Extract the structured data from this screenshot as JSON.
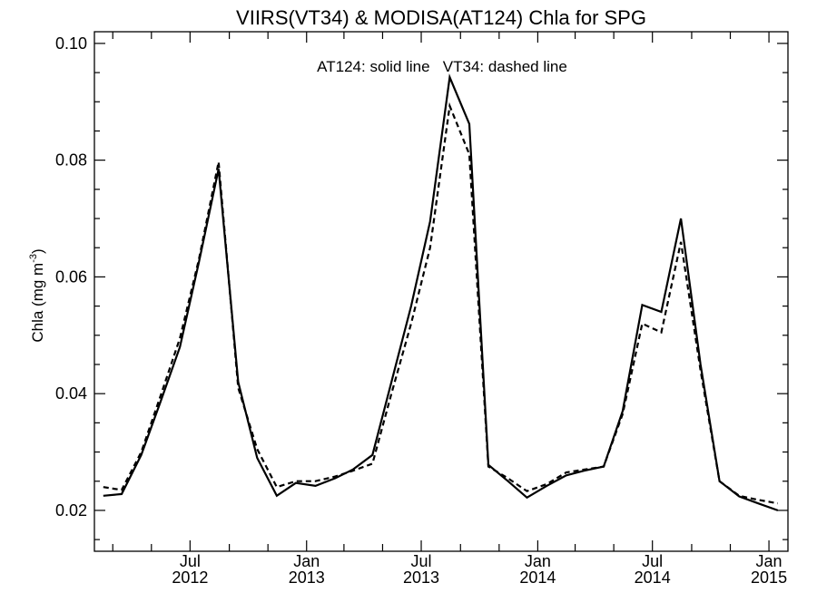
{
  "chart_data": {
    "type": "line",
    "title": "VIIRS(VT34) & MODISA(AT124)  Chla for SPG",
    "ylabel": "Chla (mg m",
    "ylabel_sup": "-3",
    "ylabel_close": ")",
    "annotation": "AT124: solid line   VT34: dashed line",
    "xlim": [
      "2012-02-01",
      "2015-01-31"
    ],
    "ylim": [
      0.013,
      0.102
    ],
    "yticks": [
      0.02,
      0.04,
      0.06,
      0.08,
      0.1
    ],
    "ytick_labels": [
      "0.02",
      "0.04",
      "0.06",
      "0.08",
      "0.10"
    ],
    "yminor_step": 0.005,
    "xtick_months": [
      "2012-03-01",
      "2012-05-01",
      "2012-07-01",
      "2012-09-01",
      "2012-11-01",
      "2013-01-01",
      "2013-03-01",
      "2013-05-01",
      "2013-07-01",
      "2013-09-01",
      "2013-11-01",
      "2014-01-01",
      "2014-03-01",
      "2014-05-01",
      "2014-07-01",
      "2014-09-01",
      "2014-11-01",
      "2015-01-01"
    ],
    "xtick_labels": [
      {
        "date": "2012-07-01",
        "month": "Jul",
        "year": "2012"
      },
      {
        "date": "2013-01-01",
        "month": "Jan",
        "year": "2013"
      },
      {
        "date": "2013-07-01",
        "month": "Jul",
        "year": "2013"
      },
      {
        "date": "2014-01-01",
        "month": "Jan",
        "year": "2014"
      },
      {
        "date": "2014-07-01",
        "month": "Jul",
        "year": "2014"
      },
      {
        "date": "2015-01-01",
        "month": "Jan",
        "year": "2015"
      }
    ],
    "x": [
      "2012-02-15",
      "2012-03-15",
      "2012-04-15",
      "2012-05-15",
      "2012-06-15",
      "2012-07-15",
      "2012-08-15",
      "2012-09-15",
      "2012-10-15",
      "2012-11-15",
      "2012-12-15",
      "2013-01-15",
      "2013-02-15",
      "2013-03-15",
      "2013-04-15",
      "2013-05-15",
      "2013-06-15",
      "2013-07-15",
      "2013-08-15",
      "2013-09-15",
      "2013-10-15",
      "2013-11-15",
      "2013-12-15",
      "2014-01-15",
      "2014-02-15",
      "2014-03-15",
      "2014-04-15",
      "2014-05-15",
      "2014-06-15",
      "2014-07-15",
      "2014-08-15",
      "2014-09-15",
      "2014-10-15",
      "2014-11-15",
      "2014-12-15",
      "2015-01-15"
    ],
    "series": [
      {
        "name": "AT124",
        "style": "solid",
        "values": [
          0.0225,
          0.0228,
          0.0295,
          0.0385,
          0.048,
          0.0625,
          0.0785,
          0.042,
          0.029,
          0.0225,
          0.0247,
          0.0242,
          0.0255,
          0.027,
          0.0295,
          0.042,
          0.055,
          0.0695,
          0.0942,
          0.0862,
          0.0278,
          0.025,
          0.0222,
          0.0242,
          0.026,
          0.0268,
          0.0275,
          0.037,
          0.0552,
          0.054,
          0.07,
          0.045,
          0.025,
          0.0224,
          0.0212,
          0.02
        ]
      },
      {
        "name": "VT34",
        "style": "dashed",
        "values": [
          0.024,
          0.0235,
          0.03,
          0.0395,
          0.0495,
          0.063,
          0.0797,
          0.041,
          0.0305,
          0.024,
          0.025,
          0.025,
          0.0258,
          0.0268,
          0.028,
          0.04,
          0.052,
          0.065,
          0.0893,
          0.081,
          0.0275,
          0.0255,
          0.0233,
          0.0245,
          0.0265,
          0.027,
          0.0275,
          0.0365,
          0.052,
          0.0505,
          0.066,
          0.044,
          0.025,
          0.0225,
          0.0218,
          0.0212
        ]
      }
    ]
  }
}
